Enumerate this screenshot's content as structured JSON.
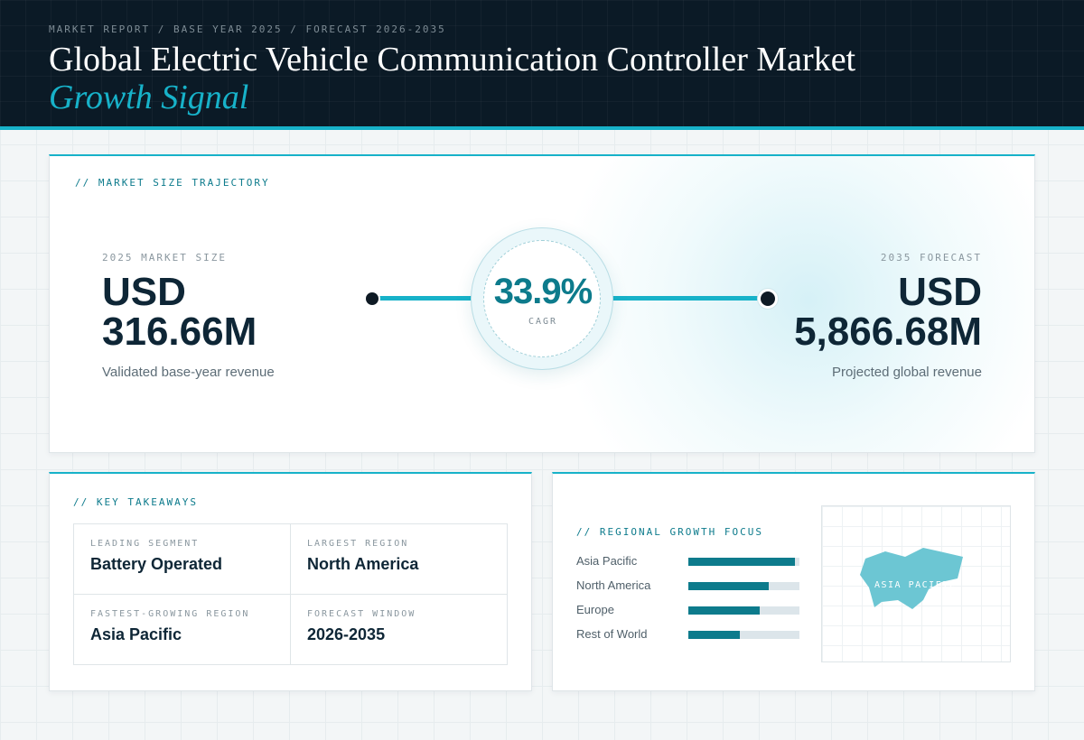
{
  "header": {
    "kicker": "MARKET REPORT / BASE YEAR 2025 / FORECAST 2026-2035",
    "title": "Global Electric Vehicle Communication Controller Market",
    "subtitle": "Growth Signal"
  },
  "trajectory": {
    "section_label": "// MARKET SIZE TRAJECTORY",
    "base": {
      "label": "2025 MARKET SIZE",
      "currency": "USD",
      "value": "316.66M",
      "caption": "Validated base-year revenue"
    },
    "forecast": {
      "label": "2035 FORECAST",
      "currency": "USD",
      "value": "5,866.68M",
      "caption": "Projected global revenue"
    },
    "cagr": {
      "value": "33.9%",
      "label": "CAGR"
    }
  },
  "takeaways": {
    "section_label": "// KEY TAKEAWAYS",
    "items": [
      {
        "label": "LEADING SEGMENT",
        "value": "Battery Operated"
      },
      {
        "label": "LARGEST REGION",
        "value": "North America"
      },
      {
        "label": "FASTEST-GROWING REGION",
        "value": "Asia Pacific"
      },
      {
        "label": "FORECAST WINDOW",
        "value": "2026-2035"
      }
    ]
  },
  "regional": {
    "section_label": "// REGIONAL GROWTH FOCUS",
    "bars": [
      {
        "label": "Asia Pacific",
        "fill": 0.96
      },
      {
        "label": "North America",
        "fill": 0.72
      },
      {
        "label": "Europe",
        "fill": 0.64
      },
      {
        "label": "Rest of World",
        "fill": 0.46
      }
    ],
    "map_label": "ASIA PACIFIC"
  },
  "colors": {
    "accent": "#17b2c9",
    "accent_dark": "#0d7b8c",
    "header_bg": "#0b1a26",
    "map_shape": "#6cc6d3"
  },
  "icons": [
    "asia-pacific-map-shape"
  ]
}
